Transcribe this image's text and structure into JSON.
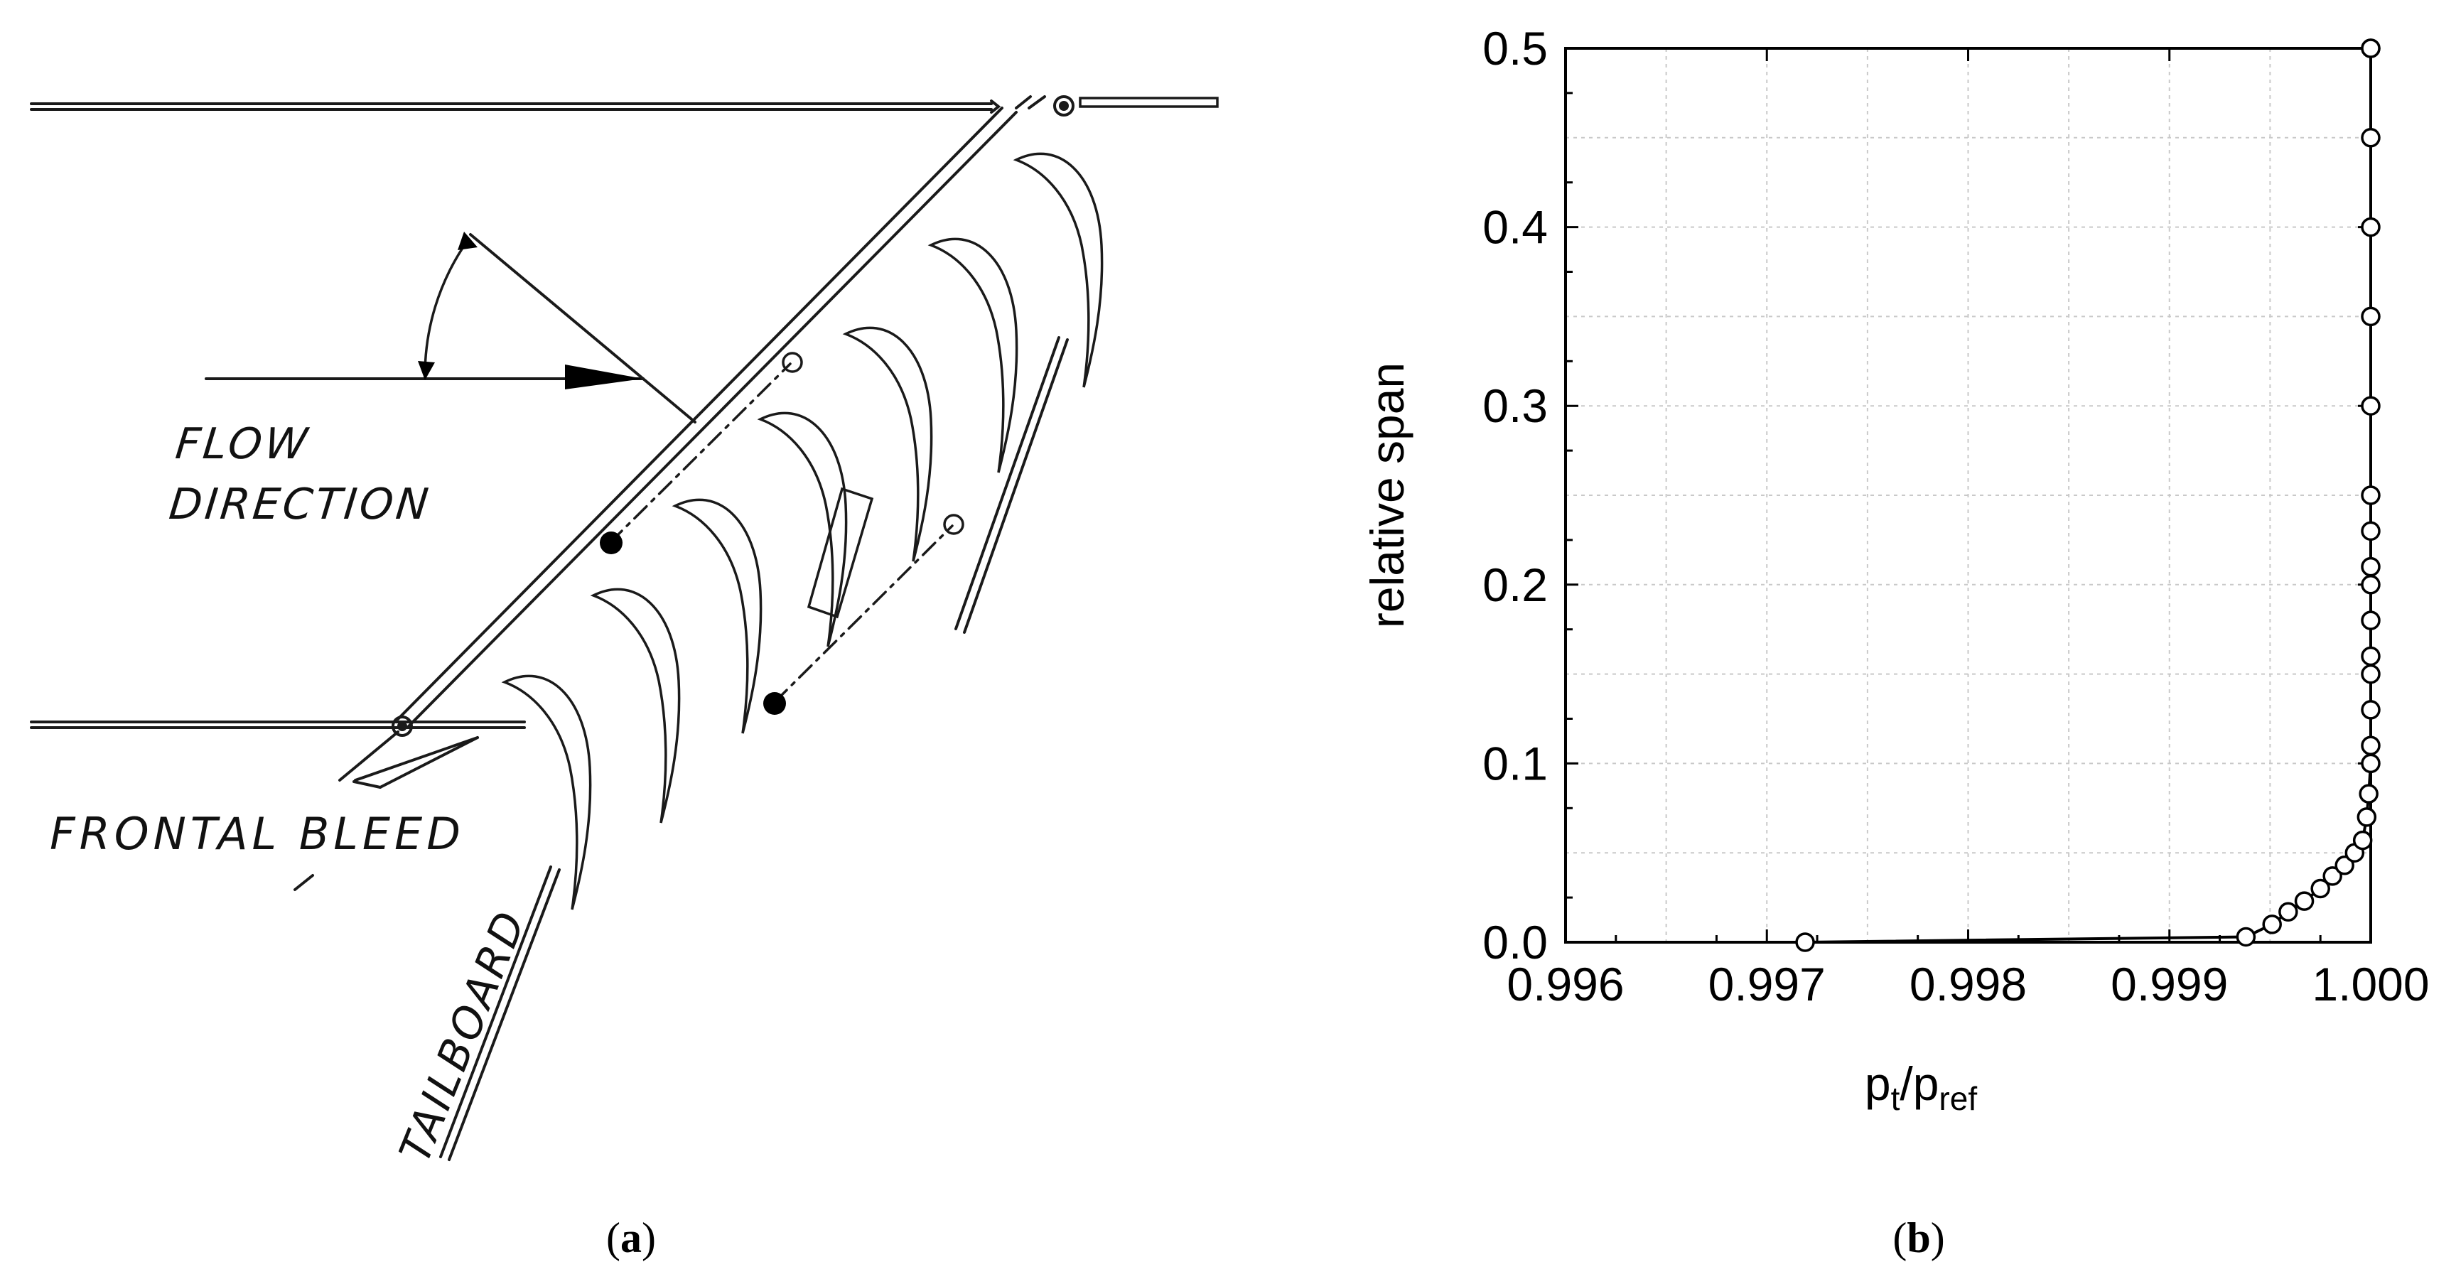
{
  "panel_a": {
    "caption_open": "(",
    "caption_letter": "a",
    "caption_close": ")",
    "labels": {
      "flow_line1": "FLOW",
      "flow_line2": "DIRECTION",
      "frontal_bleed": "FRONTAL BLEED",
      "tailboard": "TAILBOARD"
    }
  },
  "panel_b": {
    "caption_open": "(",
    "caption_letter": "b",
    "caption_close": ")"
  },
  "chart_data": {
    "type": "line",
    "title": "",
    "xlabel_main": "p",
    "xlabel_sub1": "t",
    "xlabel_sep": "/p",
    "xlabel_sub2": "ref",
    "ylabel": "relative span",
    "xlim": [
      0.996,
      1.0
    ],
    "ylim": [
      0.0,
      0.5
    ],
    "x_ticks": [
      "0.996",
      "0.997",
      "0.998",
      "0.999",
      "1.000"
    ],
    "y_ticks": [
      "0.0",
      "0.1",
      "0.2",
      "0.3",
      "0.4",
      "0.5"
    ],
    "grid": true,
    "marker": "open-circle",
    "line_color": "#000000",
    "series": [
      {
        "x": [
          0.99719,
          0.99938,
          0.99951,
          0.99959,
          0.99967,
          0.99975,
          0.99981,
          0.99987,
          0.99992,
          0.99996,
          0.99998,
          0.99999,
          1.0,
          1.0,
          1.0,
          1.0,
          1.0,
          1.0,
          1.0,
          1.0,
          1.0,
          1.0,
          1.0,
          1.0,
          1.0,
          1.0,
          1.0,
          1.0
        ],
        "y": [
          0.0,
          0.003,
          0.01,
          0.017,
          0.023,
          0.03,
          0.037,
          0.043,
          0.05,
          0.057,
          0.07,
          0.083,
          0.1,
          0.11,
          0.13,
          0.15,
          0.16,
          0.18,
          0.2,
          0.21,
          0.23,
          0.25,
          0.3,
          0.35,
          0.4,
          0.45,
          0.5,
          0.5
        ]
      }
    ]
  }
}
